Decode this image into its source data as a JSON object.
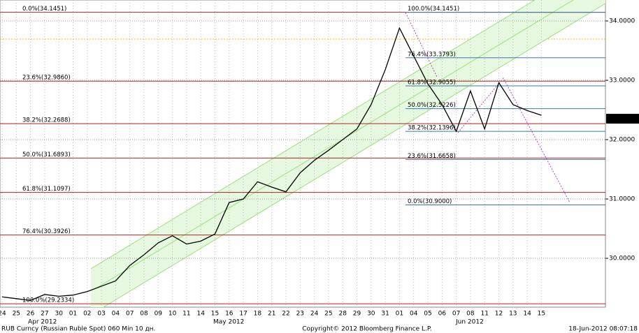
{
  "chart_data": {
    "type": "line",
    "categories": [
      "24",
      "25",
      "26",
      "27",
      "30",
      "01",
      "02",
      "03",
      "04",
      "07",
      "08",
      "09",
      "10",
      "11",
      "14",
      "15",
      "16",
      "17",
      "18",
      "21",
      "22",
      "23",
      "24",
      "25",
      "28",
      "29",
      "30",
      "31",
      "01",
      "04",
      "05",
      "06",
      "07",
      "08",
      "11",
      "12",
      "13",
      "14",
      "15"
    ],
    "series": [
      {
        "name": "RUB Curncy",
        "color": "#000000",
        "values": [
          29.35,
          29.32,
          29.29,
          29.39,
          29.36,
          29.38,
          29.44,
          29.53,
          29.62,
          29.88,
          30.06,
          30.26,
          30.38,
          30.24,
          30.29,
          30.41,
          30.94,
          31.0,
          31.29,
          31.2,
          31.12,
          31.44,
          31.65,
          31.82,
          32.0,
          32.18,
          32.59,
          33.18,
          33.88,
          33.41,
          32.94,
          32.59,
          32.14,
          32.82,
          32.18,
          32.96,
          32.59,
          32.49,
          32.41
        ]
      }
    ],
    "ylim": [
      29.1765,
      34.3529
    ],
    "yticks": [
      {
        "value": 34,
        "label": "34.0000"
      },
      {
        "value": 33,
        "label": "33.0000"
      },
      {
        "value": 32,
        "label": "32.0000"
      },
      {
        "value": 31,
        "label": "31.0000"
      },
      {
        "value": 30,
        "label": "30.0000"
      }
    ],
    "grid": true,
    "last_price": 32.3521,
    "months": [
      "Apr 2012",
      "May 2012",
      "Jun 2012"
    ],
    "fib_left": {
      "color": "#b22222",
      "levels": [
        {
          "value": 34.1451,
          "label": "0.0%(34.1451)"
        },
        {
          "value": 32.986,
          "label": "23.6%(32.9860)"
        },
        {
          "value": 32.2688,
          "label": "38.2%(32.2688)"
        },
        {
          "value": 31.6893,
          "label": "50.0%(31.6893)"
        },
        {
          "value": 31.1097,
          "label": "61.8%(31.1097)"
        },
        {
          "value": 30.3926,
          "label": "76.4%(30.3926)"
        },
        {
          "value": 29.2334,
          "label": "100.0%(29.2334)"
        }
      ]
    },
    "fib_right": {
      "color": "#3a78b0",
      "levels": [
        {
          "value": 34.1451,
          "label": "100.0%(34.1451)"
        },
        {
          "value": 33.3793,
          "label": "76.4%(33.3793)"
        },
        {
          "value": 32.9055,
          "label": "61.8%(32.9055)"
        },
        {
          "value": 32.5226,
          "label": "50.0%(32.5226)"
        },
        {
          "value": 32.1396,
          "label": "38.2%(32.1396)"
        },
        {
          "value": 31.6658,
          "label": "23.6%(31.6658)"
        },
        {
          "value": 30.9,
          "label": "0.0%(30.9000)"
        }
      ]
    },
    "footer_left": "RUB Curncy (Russian Ruble Spot) 060 Min 10 дн.",
    "footer_center": "Copyright© 2012 Bloomberg Finance L.P.",
    "footer_right": "18-Jun-2012 08:07:18"
  }
}
